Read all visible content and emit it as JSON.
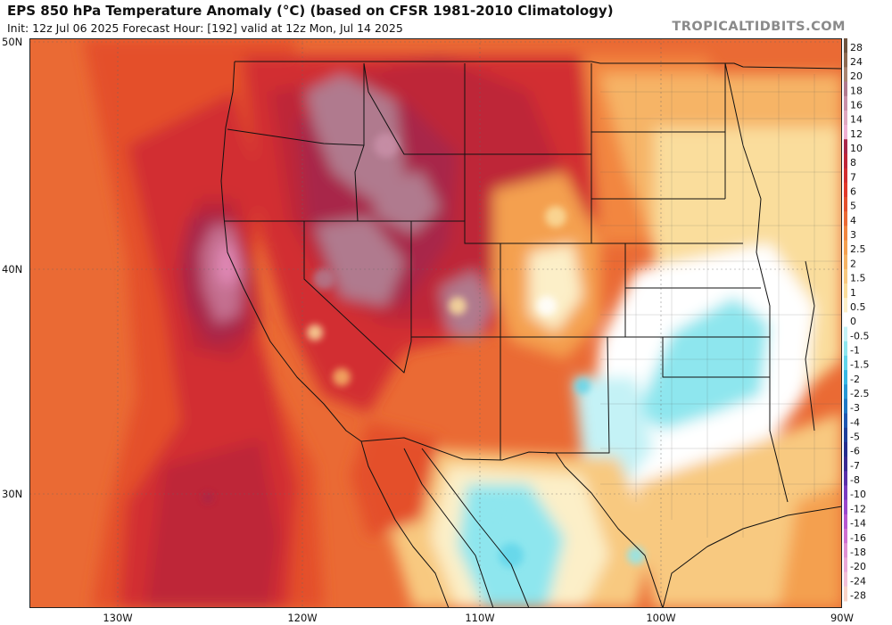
{
  "header": {
    "title": "EPS 850 hPa Temperature Anomaly (°C) (based on CFSR 1981-2010 Climatology)",
    "subtitle": "Init: 12z Jul 06 2025   Forecast Hour: [192]   valid at 12z Mon, Jul 14 2025",
    "brand": "TROPICALTIDBITS.COM"
  },
  "axes": {
    "lat_labels": [
      "50N",
      "40N",
      "30N"
    ],
    "lon_labels": [
      "130W",
      "120W",
      "110W",
      "100W",
      "90W"
    ]
  },
  "colorbar": {
    "labels": [
      "28",
      "24",
      "20",
      "18",
      "16",
      "14",
      "12",
      "10",
      "8",
      "7",
      "6",
      "5",
      "4",
      "3",
      "2.5",
      "2",
      "1.5",
      "1",
      "0.5",
      "0",
      "-0.5",
      "-1",
      "-1.5",
      "-2",
      "-2.5",
      "-3",
      "-4",
      "-5",
      "-6",
      "-7",
      "-8",
      "-10",
      "-12",
      "-14",
      "-16",
      "-18",
      "-20",
      "-24",
      "-28"
    ],
    "colors": [
      "#6e5440",
      "#8c6a52",
      "#a88470",
      "#b07a8e",
      "#c990a8",
      "#e0a8c0",
      "#f0b0d4",
      "#a8284a",
      "#be2638",
      "#d22e30",
      "#e0392a",
      "#e4502c",
      "#ea6a34",
      "#f28640",
      "#f4a050",
      "#f6b466",
      "#f8c980",
      "#fadd9c",
      "#fcefc8",
      "#ffffff",
      "#c4f2f6",
      "#8ee6ee",
      "#62d6ea",
      "#38b8e4",
      "#2898d4",
      "#2078c4",
      "#2058b0",
      "#20409a",
      "#262e8c",
      "#3a2a90",
      "#5a30a8",
      "#7a3cc0",
      "#9a48cc",
      "#b858d0",
      "#d070d0",
      "#e090d4",
      "#eaa8d8",
      "#f2c0d8",
      "#f8d4c8"
    ]
  }
}
